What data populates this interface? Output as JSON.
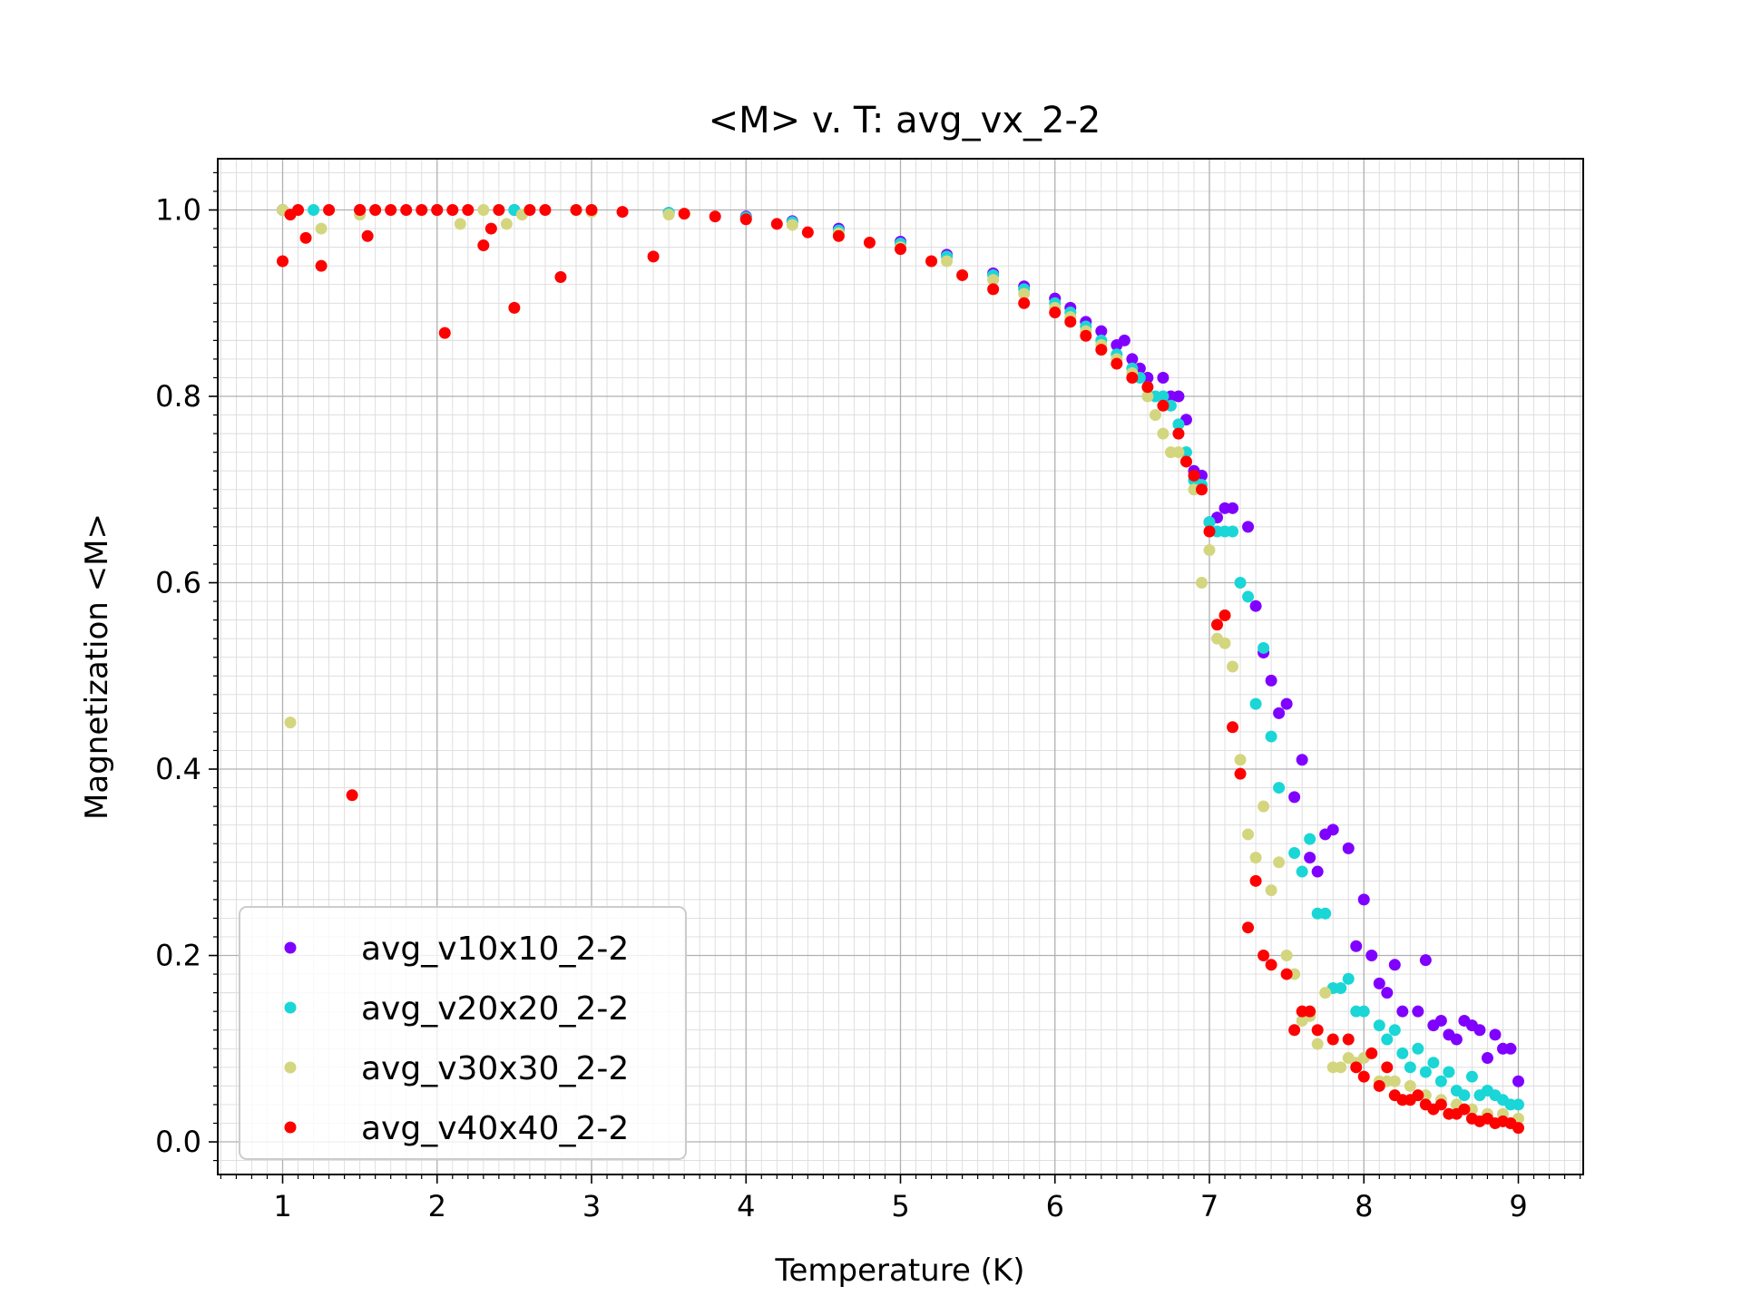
{
  "chart_data": {
    "type": "scatter",
    "title": "<M> v. T: avg_vx_2-2",
    "xlabel": "Temperature (K)",
    "ylabel": "Magnetization <M>",
    "xlim": [
      0.58,
      9.42
    ],
    "ylim": [
      -0.035,
      1.055
    ],
    "xticks": [
      1,
      2,
      3,
      4,
      5,
      6,
      7,
      8,
      9
    ],
    "xtick_labels": [
      "1",
      "2",
      "3",
      "4",
      "5",
      "6",
      "7",
      "8",
      "9"
    ],
    "yticks": [
      0.0,
      0.2,
      0.4,
      0.6,
      0.8,
      1.0
    ],
    "ytick_labels": [
      "0.0",
      "0.2",
      "0.4",
      "0.6",
      "0.8",
      "1.0"
    ],
    "grid": true,
    "minor_grid": true,
    "legend_position": "lower-left",
    "series": [
      {
        "name": "avg_v10x10_2-2",
        "color": "#8000ff",
        "points": [
          [
            1.0,
            1.0
          ],
          [
            1.5,
            1.0
          ],
          [
            2.0,
            1.0
          ],
          [
            2.5,
            1.0
          ],
          [
            3.0,
            0.999
          ],
          [
            3.5,
            0.997
          ],
          [
            4.0,
            0.993
          ],
          [
            4.3,
            0.988
          ],
          [
            4.6,
            0.98
          ],
          [
            5.0,
            0.966
          ],
          [
            5.3,
            0.952
          ],
          [
            5.6,
            0.932
          ],
          [
            5.8,
            0.918
          ],
          [
            6.0,
            0.905
          ],
          [
            6.1,
            0.895
          ],
          [
            6.2,
            0.88
          ],
          [
            6.3,
            0.87
          ],
          [
            6.4,
            0.855
          ],
          [
            6.45,
            0.86
          ],
          [
            6.5,
            0.84
          ],
          [
            6.55,
            0.83
          ],
          [
            6.6,
            0.82
          ],
          [
            6.7,
            0.82
          ],
          [
            6.75,
            0.8
          ],
          [
            6.8,
            0.8
          ],
          [
            6.85,
            0.775
          ],
          [
            6.9,
            0.72
          ],
          [
            6.95,
            0.715
          ],
          [
            7.0,
            0.665
          ],
          [
            7.05,
            0.67
          ],
          [
            7.1,
            0.68
          ],
          [
            7.15,
            0.68
          ],
          [
            7.25,
            0.66
          ],
          [
            7.3,
            0.575
          ],
          [
            7.35,
            0.525
          ],
          [
            7.4,
            0.495
          ],
          [
            7.45,
            0.46
          ],
          [
            7.5,
            0.47
          ],
          [
            7.55,
            0.37
          ],
          [
            7.6,
            0.41
          ],
          [
            7.65,
            0.305
          ],
          [
            7.7,
            0.29
          ],
          [
            7.75,
            0.33
          ],
          [
            7.8,
            0.335
          ],
          [
            7.9,
            0.315
          ],
          [
            7.95,
            0.21
          ],
          [
            8.0,
            0.26
          ],
          [
            8.05,
            0.2
          ],
          [
            8.1,
            0.17
          ],
          [
            8.15,
            0.16
          ],
          [
            8.2,
            0.19
          ],
          [
            8.25,
            0.14
          ],
          [
            8.35,
            0.14
          ],
          [
            8.4,
            0.195
          ],
          [
            8.45,
            0.125
          ],
          [
            8.5,
            0.13
          ],
          [
            8.55,
            0.115
          ],
          [
            8.6,
            0.11
          ],
          [
            8.65,
            0.13
          ],
          [
            8.7,
            0.125
          ],
          [
            8.75,
            0.12
          ],
          [
            8.8,
            0.09
          ],
          [
            8.85,
            0.115
          ],
          [
            8.9,
            0.1
          ],
          [
            8.95,
            0.1
          ],
          [
            9.0,
            0.065
          ]
        ]
      },
      {
        "name": "avg_v20x20_2-2",
        "color": "#1ad6d6",
        "points": [
          [
            1.0,
            1.0
          ],
          [
            1.2,
            1.0
          ],
          [
            1.5,
            1.0
          ],
          [
            2.0,
            1.0
          ],
          [
            2.5,
            1.0
          ],
          [
            3.0,
            0.999
          ],
          [
            3.5,
            0.997
          ],
          [
            4.0,
            0.992
          ],
          [
            4.3,
            0.987
          ],
          [
            4.6,
            0.978
          ],
          [
            5.0,
            0.964
          ],
          [
            5.3,
            0.95
          ],
          [
            5.6,
            0.93
          ],
          [
            5.8,
            0.915
          ],
          [
            6.0,
            0.9
          ],
          [
            6.1,
            0.89
          ],
          [
            6.2,
            0.875
          ],
          [
            6.3,
            0.86
          ],
          [
            6.4,
            0.845
          ],
          [
            6.5,
            0.83
          ],
          [
            6.55,
            0.82
          ],
          [
            6.6,
            0.81
          ],
          [
            6.65,
            0.8
          ],
          [
            6.7,
            0.8
          ],
          [
            6.75,
            0.79
          ],
          [
            6.8,
            0.77
          ],
          [
            6.85,
            0.74
          ],
          [
            6.9,
            0.71
          ],
          [
            6.95,
            0.705
          ],
          [
            7.0,
            0.665
          ],
          [
            7.05,
            0.655
          ],
          [
            7.1,
            0.655
          ],
          [
            7.15,
            0.655
          ],
          [
            7.2,
            0.6
          ],
          [
            7.25,
            0.585
          ],
          [
            7.3,
            0.47
          ],
          [
            7.35,
            0.53
          ],
          [
            7.4,
            0.435
          ],
          [
            7.45,
            0.38
          ],
          [
            7.55,
            0.31
          ],
          [
            7.6,
            0.29
          ],
          [
            7.65,
            0.325
          ],
          [
            7.7,
            0.245
          ],
          [
            7.75,
            0.245
          ],
          [
            7.8,
            0.165
          ],
          [
            7.85,
            0.165
          ],
          [
            7.9,
            0.175
          ],
          [
            7.95,
            0.14
          ],
          [
            8.0,
            0.14
          ],
          [
            8.1,
            0.125
          ],
          [
            8.15,
            0.11
          ],
          [
            8.2,
            0.12
          ],
          [
            8.25,
            0.095
          ],
          [
            8.3,
            0.08
          ],
          [
            8.35,
            0.1
          ],
          [
            8.4,
            0.075
          ],
          [
            8.45,
            0.085
          ],
          [
            8.5,
            0.065
          ],
          [
            8.55,
            0.075
          ],
          [
            8.6,
            0.055
          ],
          [
            8.65,
            0.05
          ],
          [
            8.7,
            0.07
          ],
          [
            8.75,
            0.05
          ],
          [
            8.8,
            0.055
          ],
          [
            8.85,
            0.05
          ],
          [
            8.9,
            0.045
          ],
          [
            8.95,
            0.04
          ],
          [
            9.0,
            0.04
          ]
        ]
      },
      {
        "name": "avg_v30x30_2-2",
        "color": "#d4d67f",
        "points": [
          [
            1.0,
            1.0
          ],
          [
            1.05,
            0.45
          ],
          [
            1.25,
            0.98
          ],
          [
            1.5,
            0.995
          ],
          [
            2.0,
            1.0
          ],
          [
            2.15,
            0.985
          ],
          [
            2.3,
            1.0
          ],
          [
            2.45,
            0.985
          ],
          [
            2.55,
            0.995
          ],
          [
            3.0,
            0.998
          ],
          [
            3.5,
            0.995
          ],
          [
            4.0,
            0.99
          ],
          [
            4.3,
            0.984
          ],
          [
            4.6,
            0.975
          ],
          [
            5.0,
            0.96
          ],
          [
            5.3,
            0.945
          ],
          [
            5.6,
            0.925
          ],
          [
            5.8,
            0.91
          ],
          [
            6.0,
            0.895
          ],
          [
            6.1,
            0.885
          ],
          [
            6.2,
            0.87
          ],
          [
            6.3,
            0.855
          ],
          [
            6.4,
            0.84
          ],
          [
            6.5,
            0.825
          ],
          [
            6.6,
            0.8
          ],
          [
            6.65,
            0.78
          ],
          [
            6.7,
            0.76
          ],
          [
            6.75,
            0.74
          ],
          [
            6.8,
            0.74
          ],
          [
            6.85,
            0.73
          ],
          [
            6.9,
            0.7
          ],
          [
            6.95,
            0.6
          ],
          [
            7.0,
            0.635
          ],
          [
            7.05,
            0.54
          ],
          [
            7.1,
            0.535
          ],
          [
            7.15,
            0.51
          ],
          [
            7.2,
            0.41
          ],
          [
            7.25,
            0.33
          ],
          [
            7.3,
            0.305
          ],
          [
            7.35,
            0.36
          ],
          [
            7.4,
            0.27
          ],
          [
            7.45,
            0.3
          ],
          [
            7.5,
            0.2
          ],
          [
            7.55,
            0.18
          ],
          [
            7.6,
            0.13
          ],
          [
            7.65,
            0.135
          ],
          [
            7.7,
            0.105
          ],
          [
            7.75,
            0.16
          ],
          [
            7.8,
            0.08
          ],
          [
            7.85,
            0.08
          ],
          [
            7.9,
            0.09
          ],
          [
            7.95,
            0.085
          ],
          [
            8.0,
            0.09
          ],
          [
            8.1,
            0.065
          ],
          [
            8.15,
            0.065
          ],
          [
            8.2,
            0.065
          ],
          [
            8.3,
            0.06
          ],
          [
            8.4,
            0.05
          ],
          [
            8.5,
            0.045
          ],
          [
            8.6,
            0.04
          ],
          [
            8.7,
            0.035
          ],
          [
            8.8,
            0.03
          ],
          [
            8.9,
            0.03
          ],
          [
            9.0,
            0.025
          ]
        ]
      },
      {
        "name": "avg_v40x40_2-2",
        "color": "#ff0000",
        "points": [
          [
            1.0,
            0.945
          ],
          [
            1.05,
            0.995
          ],
          [
            1.1,
            1.0
          ],
          [
            1.15,
            0.97
          ],
          [
            1.25,
            0.94
          ],
          [
            1.3,
            1.0
          ],
          [
            1.45,
            0.372
          ],
          [
            1.5,
            1.0
          ],
          [
            1.55,
            0.972
          ],
          [
            1.6,
            1.0
          ],
          [
            1.7,
            1.0
          ],
          [
            1.8,
            1.0
          ],
          [
            1.9,
            1.0
          ],
          [
            2.0,
            1.0
          ],
          [
            2.05,
            0.868
          ],
          [
            2.1,
            1.0
          ],
          [
            2.2,
            1.0
          ],
          [
            2.3,
            0.962
          ],
          [
            2.35,
            0.98
          ],
          [
            2.4,
            1.0
          ],
          [
            2.5,
            0.895
          ],
          [
            2.6,
            1.0
          ],
          [
            2.7,
            1.0
          ],
          [
            2.8,
            0.928
          ],
          [
            2.9,
            1.0
          ],
          [
            3.0,
            1.0
          ],
          [
            3.2,
            0.998
          ],
          [
            3.4,
            0.95
          ],
          [
            3.6,
            0.996
          ],
          [
            3.8,
            0.993
          ],
          [
            4.0,
            0.99
          ],
          [
            4.2,
            0.985
          ],
          [
            4.4,
            0.976
          ],
          [
            4.6,
            0.972
          ],
          [
            4.8,
            0.965
          ],
          [
            5.0,
            0.958
          ],
          [
            5.2,
            0.945
          ],
          [
            5.4,
            0.93
          ],
          [
            5.6,
            0.915
          ],
          [
            5.8,
            0.9
          ],
          [
            6.0,
            0.89
          ],
          [
            6.1,
            0.88
          ],
          [
            6.2,
            0.865
          ],
          [
            6.3,
            0.85
          ],
          [
            6.4,
            0.835
          ],
          [
            6.5,
            0.82
          ],
          [
            6.6,
            0.81
          ],
          [
            6.7,
            0.79
          ],
          [
            6.8,
            0.76
          ],
          [
            6.85,
            0.73
          ],
          [
            6.9,
            0.715
          ],
          [
            6.95,
            0.7
          ],
          [
            7.0,
            0.655
          ],
          [
            7.05,
            0.555
          ],
          [
            7.1,
            0.565
          ],
          [
            7.15,
            0.445
          ],
          [
            7.2,
            0.395
          ],
          [
            7.25,
            0.23
          ],
          [
            7.3,
            0.28
          ],
          [
            7.35,
            0.2
          ],
          [
            7.4,
            0.19
          ],
          [
            7.5,
            0.18
          ],
          [
            7.55,
            0.12
          ],
          [
            7.6,
            0.14
          ],
          [
            7.65,
            0.14
          ],
          [
            7.7,
            0.12
          ],
          [
            7.8,
            0.11
          ],
          [
            7.9,
            0.11
          ],
          [
            7.95,
            0.08
          ],
          [
            8.0,
            0.07
          ],
          [
            8.05,
            0.095
          ],
          [
            8.1,
            0.06
          ],
          [
            8.15,
            0.08
          ],
          [
            8.2,
            0.05
          ],
          [
            8.25,
            0.045
          ],
          [
            8.3,
            0.045
          ],
          [
            8.35,
            0.05
          ],
          [
            8.4,
            0.04
          ],
          [
            8.45,
            0.035
          ],
          [
            8.5,
            0.04
          ],
          [
            8.55,
            0.03
          ],
          [
            8.6,
            0.03
          ],
          [
            8.65,
            0.035
          ],
          [
            8.7,
            0.025
          ],
          [
            8.75,
            0.022
          ],
          [
            8.8,
            0.025
          ],
          [
            8.85,
            0.02
          ],
          [
            8.9,
            0.022
          ],
          [
            8.95,
            0.02
          ],
          [
            9.0,
            0.015
          ]
        ]
      }
    ]
  }
}
